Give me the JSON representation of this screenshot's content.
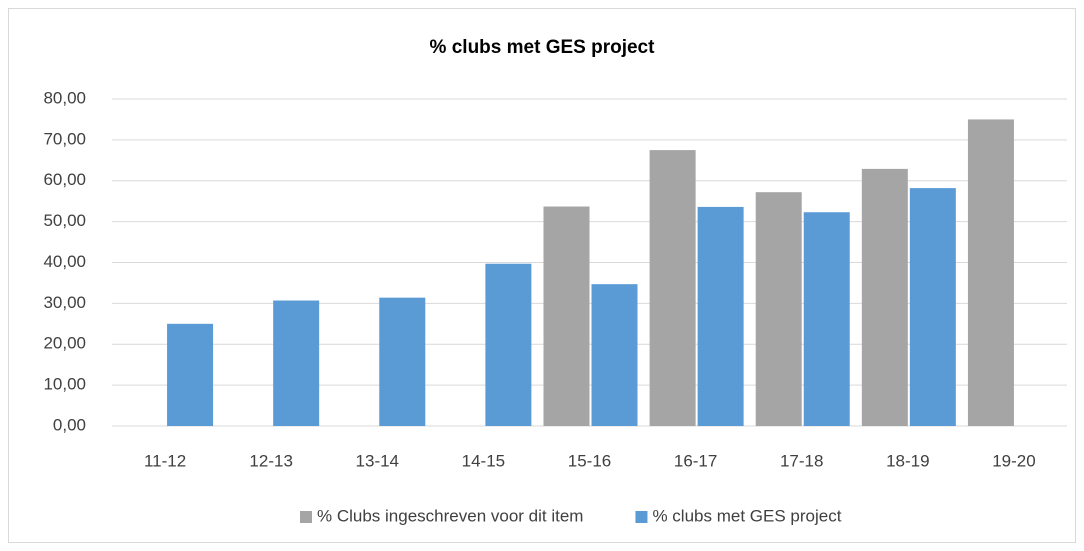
{
  "chart_data": {
    "type": "bar",
    "title": "% clubs met GES project",
    "categories": [
      "11-12",
      "12-13",
      "13-14",
      "14-15",
      "15-16",
      "16-17",
      "17-18",
      "18-19",
      "19-20"
    ],
    "series": [
      {
        "name": "% Clubs ingeschreven voor dit item",
        "color": "#a5a5a5",
        "values": [
          null,
          null,
          null,
          null,
          53.7,
          67.5,
          57.2,
          62.9,
          75.0
        ]
      },
      {
        "name": "% clubs met GES project",
        "color": "#5b9bd5",
        "values": [
          25.0,
          30.7,
          31.4,
          39.7,
          34.7,
          53.6,
          52.3,
          58.2,
          null
        ]
      }
    ],
    "ylim": [
      0,
      80
    ],
    "yticks": [
      {
        "value": 0,
        "label": "0,00"
      },
      {
        "value": 10,
        "label": "10,00"
      },
      {
        "value": 20,
        "label": "20,00"
      },
      {
        "value": 30,
        "label": "30,00"
      },
      {
        "value": 40,
        "label": "40,00"
      },
      {
        "value": 50,
        "label": "50,00"
      },
      {
        "value": 60,
        "label": "60,00"
      },
      {
        "value": 70,
        "label": "70,00"
      },
      {
        "value": 80,
        "label": "80,00"
      }
    ],
    "grid": true,
    "legend": "bottom"
  }
}
